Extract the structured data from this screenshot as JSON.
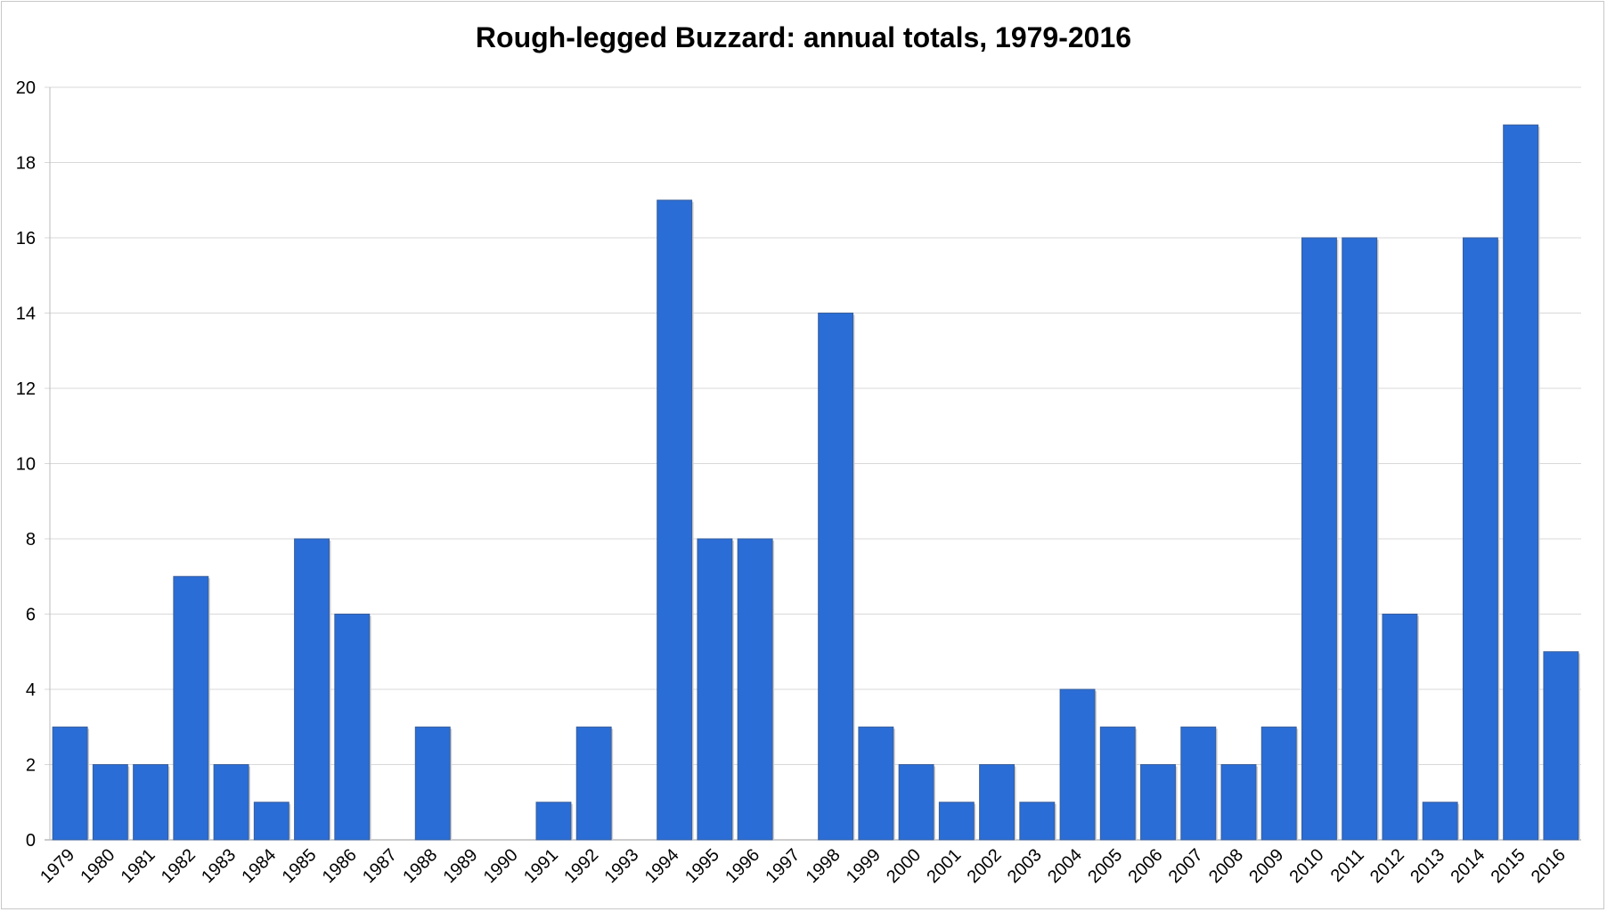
{
  "chart_data": {
    "type": "bar",
    "title": "Rough-legged Buzzard: annual totals, 1979-2016",
    "xlabel": "",
    "ylabel": "",
    "ylim": [
      0,
      20
    ],
    "yticks": [
      0,
      2,
      4,
      6,
      8,
      10,
      12,
      14,
      16,
      18,
      20
    ],
    "grid": true,
    "legend": "none",
    "bar_color": "#2a6dd6",
    "categories": [
      "1979",
      "1980",
      "1981",
      "1982",
      "1983",
      "1984",
      "1985",
      "1986",
      "1987",
      "1988",
      "1989",
      "1990",
      "1991",
      "1992",
      "1993",
      "1994",
      "1995",
      "1996",
      "1997",
      "1998",
      "1999",
      "2000",
      "2001",
      "2002",
      "2003",
      "2004",
      "2005",
      "2006",
      "2007",
      "2008",
      "2009",
      "2010",
      "2011",
      "2012",
      "2013",
      "2014",
      "2015",
      "2016"
    ],
    "values": [
      3,
      2,
      2,
      7,
      2,
      1,
      8,
      6,
      0,
      3,
      0,
      0,
      1,
      3,
      0,
      17,
      8,
      8,
      0,
      14,
      3,
      2,
      1,
      2,
      1,
      4,
      3,
      2,
      3,
      2,
      3,
      16,
      16,
      6,
      1,
      16,
      19,
      5
    ]
  }
}
